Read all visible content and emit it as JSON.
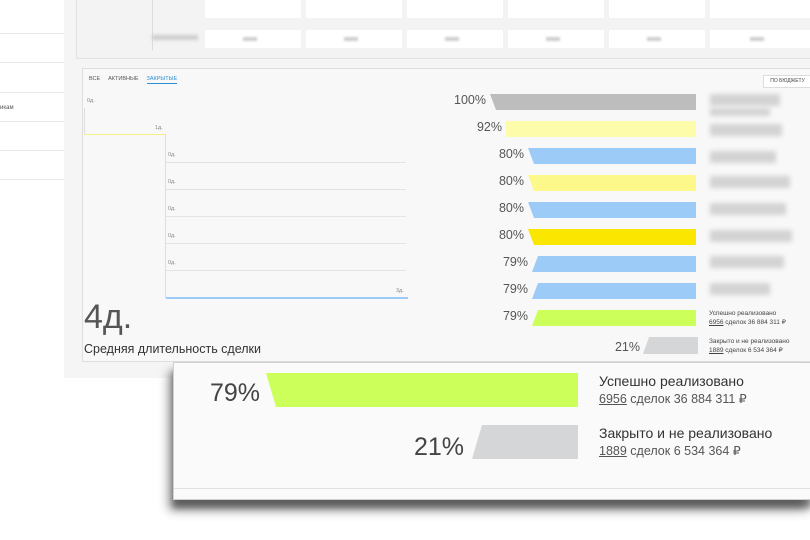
{
  "sidebar": {
    "truncated_text": "икам"
  },
  "tabs": [
    {
      "label": "ВСЕ",
      "active": false
    },
    {
      "label": "АКТИВНЫЕ",
      "active": false
    },
    {
      "label": "ЗАКРЫТЫЕ",
      "active": true
    }
  ],
  "budget_button": "ПО БЮДЖЕТУ",
  "timeline": {
    "labels": [
      "0д.",
      "1д.",
      "0д.",
      "0д.",
      "0д.",
      "0д.",
      "0д.",
      "3д."
    ]
  },
  "funnel": {
    "rows": [
      {
        "pct": "100%",
        "color": "#bdbdbd"
      },
      {
        "pct": "92%",
        "color": "#fdfcab"
      },
      {
        "pct": "80%",
        "color": "#9ccbf7"
      },
      {
        "pct": "80%",
        "color": "#fdf88a"
      },
      {
        "pct": "80%",
        "color": "#9ccbf7"
      },
      {
        "pct": "80%",
        "color": "#fbe600"
      },
      {
        "pct": "79%",
        "color": "#9ccbf7"
      },
      {
        "pct": "79%",
        "color": "#9ccbf7"
      },
      {
        "pct": "79%",
        "color": "#ccff5a"
      }
    ]
  },
  "summary": {
    "avg_days": "4д.",
    "avg_label": "Средняя длительность сделки",
    "lost_pct": "21%",
    "success": {
      "label": "Успешно реализовано",
      "count": "6956",
      "rest": "сделок 36 884 311 ₽"
    },
    "lost": {
      "label": "Закрыто и не реализовано",
      "count": "1889",
      "rest": "сделок 6 534 364 ₽"
    }
  },
  "zoom": {
    "success_pct": "79%",
    "lost_pct": "21%",
    "success": {
      "label": "Успешно реализовано",
      "count": "6956",
      "rest": "сделок 36 884 311 ₽"
    },
    "lost": {
      "label": "Закрыто и не реализовано",
      "count": "1889",
      "rest": "сделок 6 534 364 ₽"
    }
  },
  "colors": {
    "success": "#ccff5a",
    "lost": "#d4d6d8",
    "accent": "#2a8fd5"
  }
}
